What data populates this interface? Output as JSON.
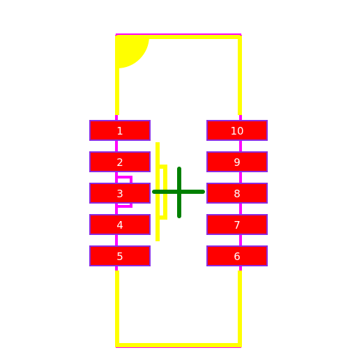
{
  "footprint": {
    "pads_left": [
      {
        "label": "1"
      },
      {
        "label": "2"
      },
      {
        "label": "3"
      },
      {
        "label": "4"
      },
      {
        "label": "5"
      }
    ],
    "pads_right": [
      {
        "label": "10"
      },
      {
        "label": "9"
      },
      {
        "label": "8"
      },
      {
        "label": "7"
      },
      {
        "label": "6"
      }
    ],
    "colors": {
      "pad_fill": "#ff0000",
      "pad_edge": "#8a2be2",
      "silkscreen": "#ffff00",
      "courtyard": "#ff00ff",
      "origin_marker": "#008000",
      "background": "#ffffff"
    },
    "icons": {
      "pin1": "pin1-quarter-circle-marker",
      "origin": "origin-crosshair-icon"
    }
  }
}
